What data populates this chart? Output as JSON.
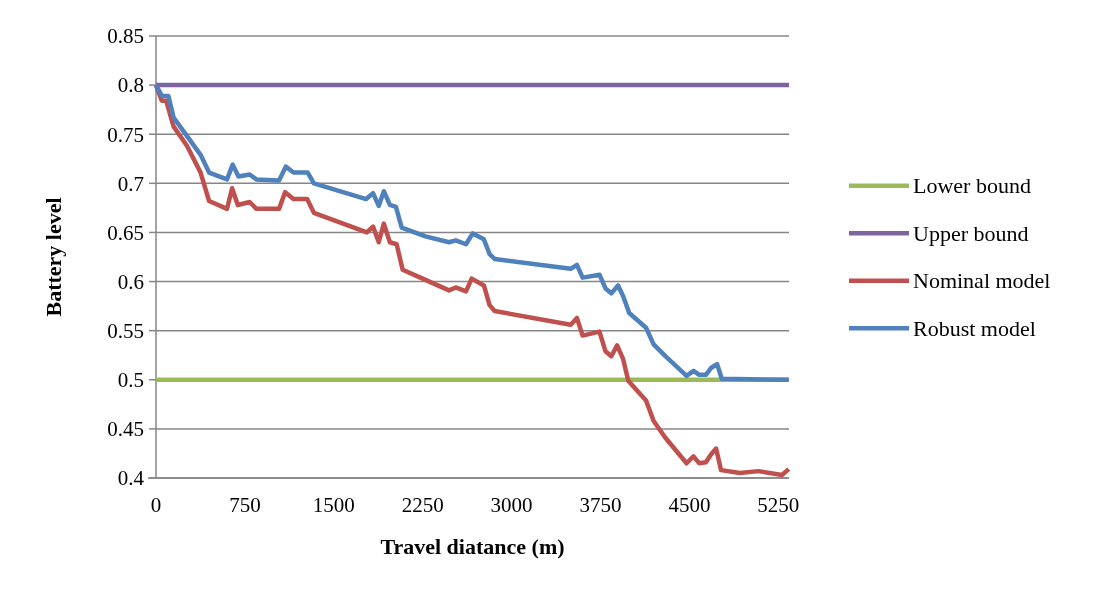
{
  "chart_data": {
    "type": "line",
    "xlabel": "Travel diatance (m)",
    "ylabel": "Battery level",
    "xlim": [
      0,
      5340
    ],
    "xticks": [
      0,
      750,
      1500,
      2250,
      3000,
      3750,
      4500,
      5250
    ],
    "ylim": [
      0.4,
      0.85
    ],
    "yticks": [
      0.4,
      0.45,
      0.5,
      0.55,
      0.6,
      0.65,
      0.7,
      0.75,
      0.8,
      0.85
    ],
    "grid": "y",
    "legend": "right",
    "marker": "none",
    "line_style": "solid",
    "series": [
      {
        "name": "Lower bound",
        "color": "#9bbb59",
        "x": [
          0,
          5340
        ],
        "values": [
          0.5,
          0.5
        ]
      },
      {
        "name": "Upper bound",
        "color": "#8064a2",
        "x": [
          0,
          5340
        ],
        "values": [
          0.8,
          0.8
        ]
      },
      {
        "name": "Nominal model",
        "color": "#c0504d",
        "x": [
          0,
          49,
          86,
          148,
          262,
          376,
          448,
          599,
          642,
          690,
          790,
          847,
          1038,
          1089,
          1160,
          1275,
          1332,
          1779,
          1831,
          1879,
          1922,
          1973,
          2030,
          2081,
          2230,
          2472,
          2529,
          2615,
          2663,
          2766,
          2814,
          2857,
          3499,
          3551,
          3599,
          3741,
          3792,
          3841,
          3890,
          3941,
          3984,
          4134,
          4198,
          4297,
          4476,
          4534,
          4583,
          4639,
          4682,
          4725,
          4767,
          4925,
          5081,
          5281,
          5338
        ],
        "values": [
          0.8,
          0.784,
          0.784,
          0.758,
          0.738,
          0.711,
          0.682,
          0.674,
          0.695,
          0.678,
          0.681,
          0.674,
          0.674,
          0.691,
          0.684,
          0.684,
          0.67,
          0.65,
          0.656,
          0.64,
          0.659,
          0.64,
          0.638,
          0.612,
          0.604,
          0.591,
          0.594,
          0.59,
          0.603,
          0.596,
          0.576,
          0.57,
          0.556,
          0.563,
          0.545,
          0.549,
          0.529,
          0.524,
          0.535,
          0.521,
          0.499,
          0.479,
          0.458,
          0.441,
          0.415,
          0.422,
          0.415,
          0.416,
          0.424,
          0.43,
          0.408,
          0.405,
          0.407,
          0.403,
          0.409
        ]
      },
      {
        "name": "Robust model",
        "color": "#4f81bd",
        "x": [
          0,
          49,
          105,
          148,
          262,
          376,
          448,
          599,
          647,
          696,
          790,
          847,
          1038,
          1095,
          1160,
          1280,
          1332,
          1773,
          1831,
          1879,
          1922,
          1973,
          2024,
          2073,
          2273,
          2472,
          2529,
          2615,
          2672,
          2766,
          2814,
          2857,
          3499,
          3551,
          3599,
          3741,
          3792,
          3841,
          3898,
          3941,
          3992,
          4134,
          4198,
          4297,
          4476,
          4534,
          4583,
          4639,
          4682,
          4733,
          4773,
          5338
        ],
        "values": [
          0.8,
          0.789,
          0.789,
          0.767,
          0.748,
          0.729,
          0.711,
          0.704,
          0.719,
          0.707,
          0.709,
          0.704,
          0.703,
          0.717,
          0.711,
          0.711,
          0.7,
          0.684,
          0.69,
          0.677,
          0.692,
          0.678,
          0.676,
          0.655,
          0.646,
          0.64,
          0.642,
          0.638,
          0.649,
          0.643,
          0.628,
          0.623,
          0.613,
          0.617,
          0.604,
          0.607,
          0.593,
          0.588,
          0.596,
          0.585,
          0.568,
          0.553,
          0.536,
          0.524,
          0.504,
          0.509,
          0.505,
          0.505,
          0.512,
          0.516,
          0.501,
          0.5
        ]
      }
    ]
  }
}
